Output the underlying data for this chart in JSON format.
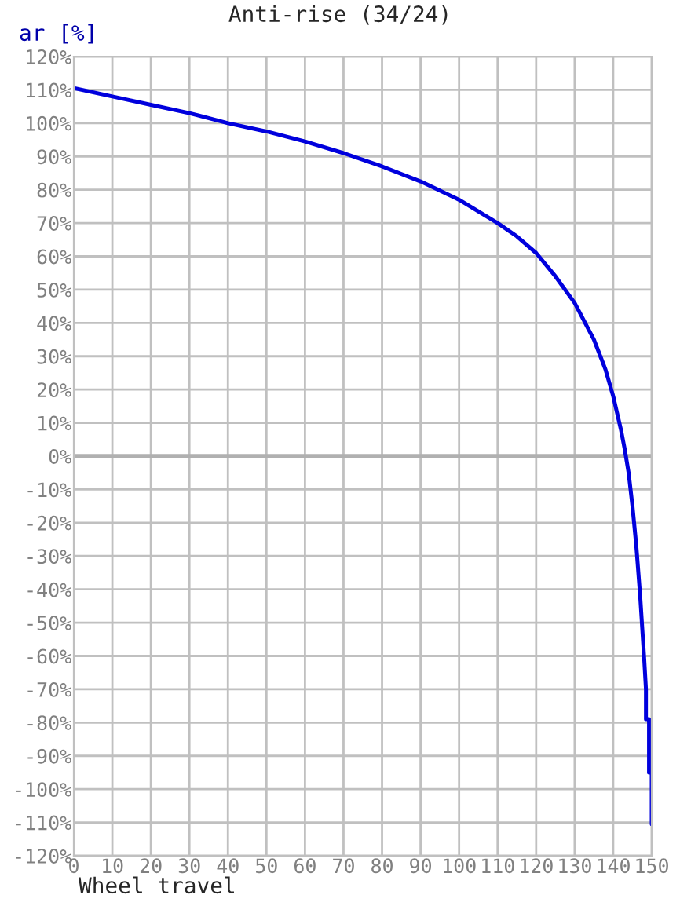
{
  "chart_data": {
    "type": "line",
    "title": "Anti-rise (34/24)",
    "xlabel": "Wheel travel",
    "ylabel": "ar [%]",
    "series": [
      {
        "color": "#0000dd",
        "x": [
          0,
          10,
          20,
          30,
          40,
          50,
          60,
          70,
          80,
          90,
          100,
          110,
          115,
          120,
          125,
          130,
          135,
          138,
          140,
          142,
          143,
          144,
          145,
          146,
          147,
          148,
          148.5,
          148.5,
          149.3,
          149.3,
          150,
          150
        ],
        "values": [
          110.5,
          108,
          105.5,
          103,
          100,
          97.5,
          94.5,
          91,
          87,
          82.5,
          77,
          70,
          66,
          61,
          54,
          46,
          35,
          26,
          18,
          8,
          2,
          -5,
          -15,
          -27,
          -42,
          -60,
          -70,
          -79,
          -79,
          -95,
          -95,
          -110.5
        ]
      }
    ],
    "xlim": [
      0,
      150
    ],
    "xticks": [
      0,
      10,
      20,
      30,
      40,
      50,
      60,
      70,
      80,
      90,
      100,
      110,
      120,
      130,
      140,
      150
    ],
    "ylim": [
      -120,
      120
    ],
    "yticks": [
      {
        "value": -120,
        "label": "-120%"
      },
      {
        "value": -110,
        "label": "-110%"
      },
      {
        "value": -100,
        "label": "-100%"
      },
      {
        "value": -90,
        "label": "-90%"
      },
      {
        "value": -80,
        "label": "-80%"
      },
      {
        "value": -70,
        "label": "-70%"
      },
      {
        "value": -60,
        "label": "-60%"
      },
      {
        "value": -50,
        "label": "-50%"
      },
      {
        "value": -40,
        "label": "-40%"
      },
      {
        "value": -30,
        "label": "-30%"
      },
      {
        "value": -20,
        "label": "-20%"
      },
      {
        "value": -10,
        "label": "-10%"
      },
      {
        "value": 0,
        "label": "0%"
      },
      {
        "value": 10,
        "label": "10%"
      },
      {
        "value": 20,
        "label": "20%"
      },
      {
        "value": 30,
        "label": "30%"
      },
      {
        "value": 40,
        "label": "40%"
      },
      {
        "value": 50,
        "label": "50%"
      },
      {
        "value": 60,
        "label": "60%"
      },
      {
        "value": 70,
        "label": "70%"
      },
      {
        "value": 80,
        "label": "80%"
      },
      {
        "value": 90,
        "label": "90%"
      },
      {
        "value": 100,
        "label": "100%"
      },
      {
        "value": 110,
        "label": "110%"
      },
      {
        "value": 120,
        "label": "120%"
      }
    ],
    "ref_lines": [
      {
        "axis": "y",
        "value": 0,
        "color": "#b0b0b0"
      }
    ],
    "grid": true
  }
}
